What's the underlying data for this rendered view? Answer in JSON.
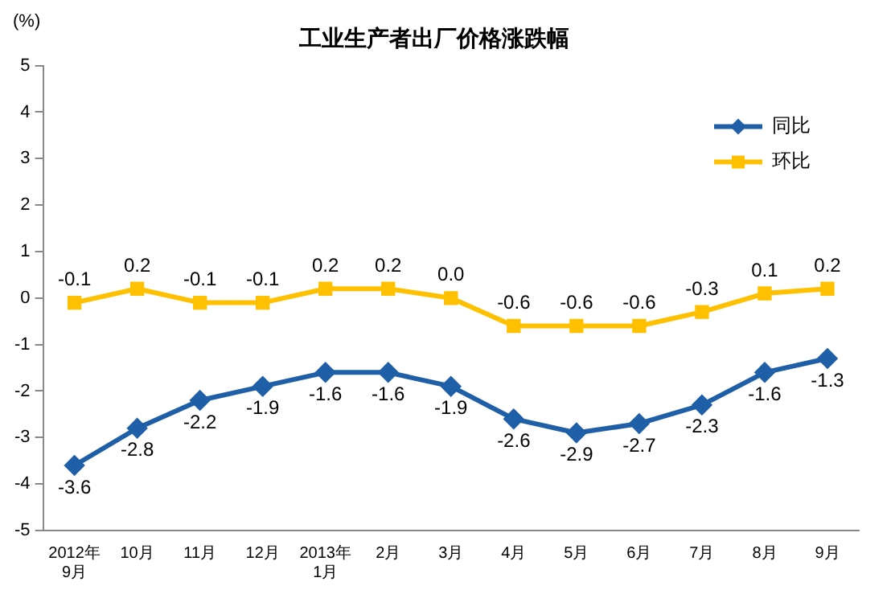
{
  "chart_data": {
    "type": "line",
    "title": "工业生产者出厂价格涨跌幅",
    "ylabel": "(%)",
    "categories": [
      "2012年\n9月",
      "10月",
      "11月",
      "12月",
      "2013年\n1月",
      "2月",
      "3月",
      "4月",
      "5月",
      "6月",
      "7月",
      "8月",
      "9月"
    ],
    "series": [
      {
        "name": "同比",
        "color": "#1f5fa8",
        "marker": "diamond",
        "values": [
          -3.6,
          -2.8,
          -2.2,
          -1.9,
          -1.6,
          -1.6,
          -1.9,
          -2.6,
          -2.9,
          -2.7,
          -2.3,
          -1.6,
          -1.3
        ],
        "value_labels": [
          "-3.6",
          "-2.8",
          "-2.2",
          "-1.9",
          "-1.6",
          "-1.6",
          "-1.9",
          "-2.6",
          "-2.9",
          "-2.7",
          "-2.3",
          "-1.6",
          "-1.3"
        ]
      },
      {
        "name": "环比",
        "color": "#ffc000",
        "marker": "square",
        "values": [
          -0.1,
          0.2,
          -0.1,
          -0.1,
          0.2,
          0.2,
          0.0,
          -0.6,
          -0.6,
          -0.6,
          -0.3,
          0.1,
          0.2
        ],
        "value_labels": [
          "-0.1",
          "0.2",
          "-0.1",
          "-0.1",
          "0.2",
          "0.2",
          "0.0",
          "-0.6",
          "-0.6",
          "-0.6",
          "-0.3",
          "0.1",
          "0.2"
        ]
      }
    ],
    "ylim": [
      -5,
      5
    ],
    "yticks": [
      -5,
      -4,
      -3,
      -2,
      -1,
      0,
      1,
      2,
      3,
      4,
      5
    ],
    "grid": false,
    "legend": "top right",
    "line_style": "solid"
  }
}
